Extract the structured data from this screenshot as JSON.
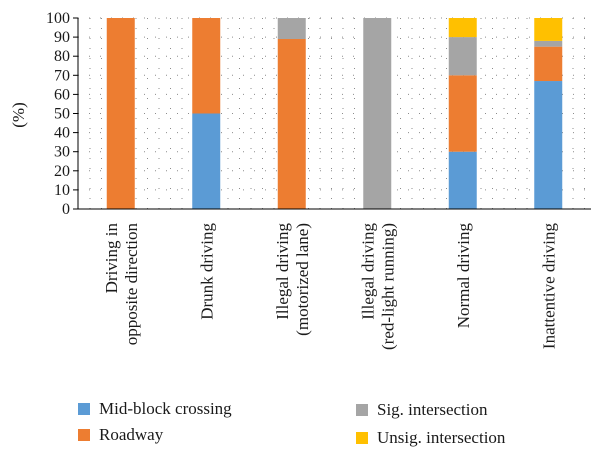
{
  "chart_data": {
    "type": "bar",
    "stacked": true,
    "categories": [
      [
        "Driving in",
        "opposite direction"
      ],
      [
        "Drunk driving"
      ],
      [
        "Illegal driving",
        "(motorized lane)"
      ],
      [
        "Illegal driving",
        "(red-light running)"
      ],
      [
        "Normal driving"
      ],
      [
        "Inattentive driving"
      ]
    ],
    "series": [
      {
        "name": "Mid-block crossing",
        "color": "#5b9bd5",
        "values": [
          0,
          50,
          0,
          0,
          30,
          67
        ]
      },
      {
        "name": "Roadway",
        "color": "#ed7d31",
        "values": [
          100,
          50,
          89,
          0,
          40,
          18
        ]
      },
      {
        "name": "Sig. intersection",
        "color": "#a5a5a5",
        "values": [
          0,
          0,
          11,
          100,
          20,
          3
        ]
      },
      {
        "name": "Unsig. intersection",
        "color": "#ffc000",
        "values": [
          0,
          0,
          0,
          0,
          10,
          12
        ]
      }
    ],
    "ylabel": "(%)",
    "ylim": [
      0,
      100
    ],
    "yticks": [
      0,
      10,
      20,
      30,
      40,
      50,
      60,
      70,
      80,
      90,
      100
    ],
    "grid": true,
    "legend_position": "bottom"
  },
  "legend": {
    "items": [
      {
        "label": "Mid-block crossing",
        "color": "#5b9bd5"
      },
      {
        "label": "Roadway",
        "color": "#ed7d31"
      },
      {
        "label": "Sig. intersection",
        "color": "#a5a5a5"
      },
      {
        "label": "Unsig. intersection",
        "color": "#ffc000"
      }
    ]
  }
}
